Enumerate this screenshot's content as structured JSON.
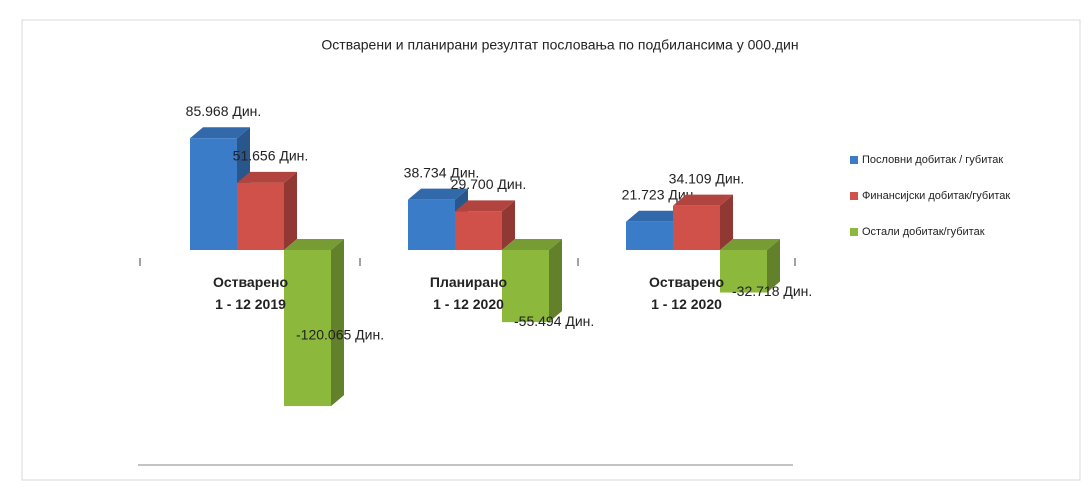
{
  "chart_data": {
    "type": "bar3d",
    "title": "Остварени и планирани резултат пословања по подбилансима у 000.дин",
    "categories": [
      "Остварено\n1 - 12 2019",
      "Планирано\n1 - 12 2020",
      "Остварено\n1 - 12 2020"
    ],
    "series": [
      {
        "name": "Пословни добитак / губитак",
        "color": "#3b7cc8",
        "values": [
          85968,
          38734,
          21723
        ],
        "value_labels": [
          "85.968 Дин.",
          "38.734 Дин.",
          "21.723 Дин."
        ]
      },
      {
        "name": "Финансијски добитак/губитак",
        "color": "#d0504a",
        "values": [
          51656,
          29700,
          34109
        ],
        "value_labels": [
          "51.656 Дин.",
          "29.700 Дин.",
          "34.109 Дин."
        ]
      },
      {
        "name": "Остали добитак/губитак",
        "color": "#8cb83c",
        "values": [
          -120065,
          -55494,
          -32718
        ],
        "value_labels": [
          "-120.065 Дин.",
          "-55.494 Дин.",
          "-32.718 Дин."
        ]
      }
    ],
    "legend": "right"
  }
}
